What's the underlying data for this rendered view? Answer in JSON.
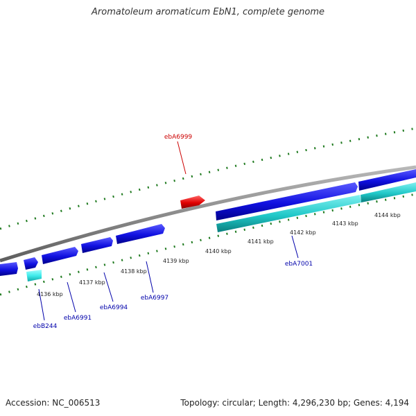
{
  "title": "Aromatoleum aromaticum EbN1, complete genome",
  "footer": {
    "accession": "Accession: NC_006513",
    "summary": "Topology: circular; Length: 4,296,230 bp; Genes: 4,194"
  },
  "colors": {
    "forward_gene": "#1010e0",
    "reverse_gene": "#20c8c8",
    "highlight_gene": "#e00000",
    "backbone": "#8c8c8c",
    "tick": "#1f7a1f",
    "label_link": "#0000aa",
    "label_link_highlight": "#cc0000"
  },
  "scale_labels": [
    "4136 kbp",
    "4137 kbp",
    "4138 kbp",
    "4139 kbp",
    "4140 kbp",
    "4141 kbp",
    "4142 kbp",
    "4143 kbp",
    "4144 kbp"
  ],
  "gene_labels": [
    {
      "name": "ebA6999",
      "highlight": true
    },
    {
      "name": "ebA7001",
      "highlight": false
    },
    {
      "name": "ebB244",
      "highlight": false
    },
    {
      "name": "ebA6991",
      "highlight": false
    },
    {
      "name": "ebA6994",
      "highlight": false
    },
    {
      "name": "ebA6997",
      "highlight": false
    }
  ]
}
